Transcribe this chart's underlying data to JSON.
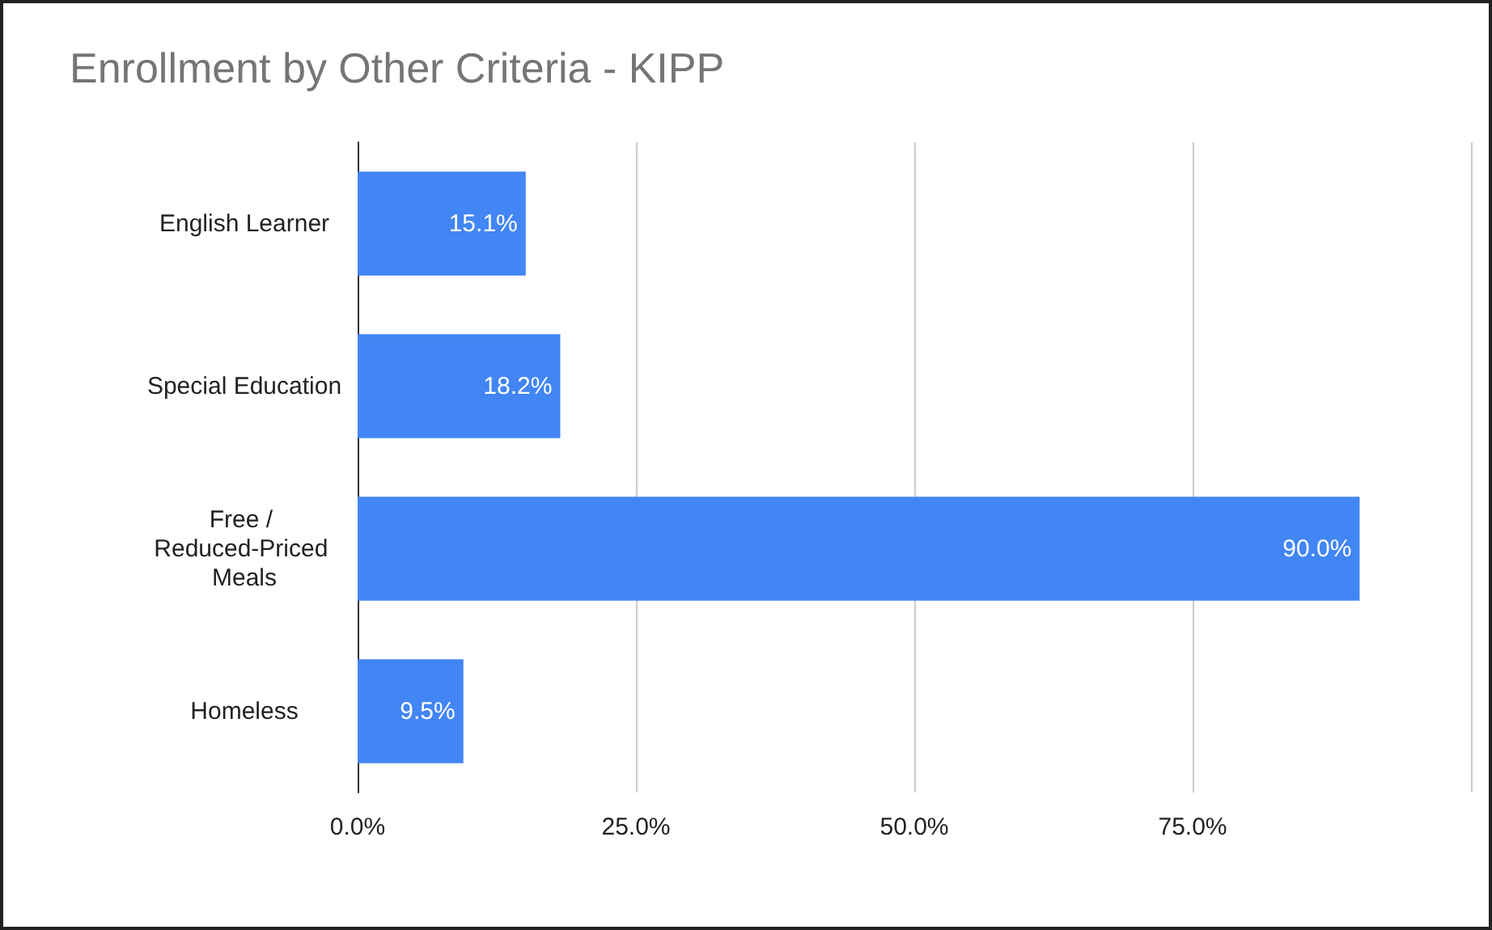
{
  "chart_data": {
    "type": "bar",
    "orientation": "horizontal",
    "title": "Enrollment by Other Criteria - KIPP",
    "categories": [
      "English Learner",
      "Special Education",
      "Free / Reduced-Priced Meals",
      "Homeless"
    ],
    "values": [
      15.1,
      18.2,
      90.0,
      9.5
    ],
    "value_labels": [
      "15.1%",
      "18.2%",
      "90.0%",
      "9.5%"
    ],
    "color": "#4285f4",
    "xlim": [
      0,
      100
    ],
    "xticks": [
      {
        "value": 0,
        "label": "0.0%"
      },
      {
        "value": 25,
        "label": "25.0%"
      },
      {
        "value": 50,
        "label": "50.0%"
      },
      {
        "value": 75,
        "label": "75.0%"
      },
      {
        "value": 100,
        "label": null
      }
    ],
    "grid": "x"
  }
}
